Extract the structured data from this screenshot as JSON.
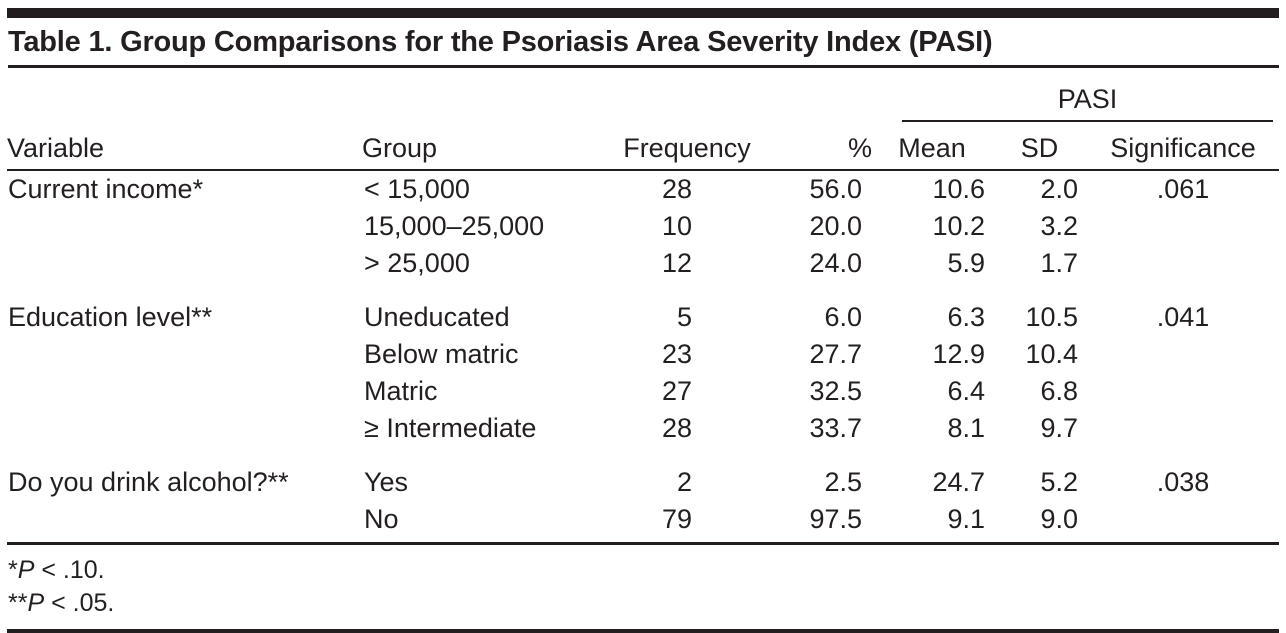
{
  "title": "Table 1. Group Comparisons for the Psoriasis Area Severity Index (PASI)",
  "table": {
    "span_header": "PASI",
    "columns": [
      "Variable",
      "Group",
      "Frequency",
      "%",
      "Mean",
      "SD",
      "Significance"
    ],
    "rows": [
      {
        "variable": "Current income*",
        "groups": [
          {
            "group": "< 15,000",
            "frequency": "28",
            "percent": "56.0",
            "mean": "10.6",
            "sd": "2.0",
            "significance": ".061"
          },
          {
            "group": "15,000–25,000",
            "frequency": "10",
            "percent": "20.0",
            "mean": "10.2",
            "sd": "3.2",
            "significance": ""
          },
          {
            "group": "> 25,000",
            "frequency": "12",
            "percent": "24.0",
            "mean": "5.9",
            "sd": "1.7",
            "significance": ""
          }
        ]
      },
      {
        "variable": "Education level**",
        "groups": [
          {
            "group": "Uneducated",
            "frequency": "5",
            "percent": "6.0",
            "mean": "6.3",
            "sd": "10.5",
            "significance": ".041"
          },
          {
            "group": "Below matric",
            "frequency": "23",
            "percent": "27.7",
            "mean": "12.9",
            "sd": "10.4",
            "significance": ""
          },
          {
            "group": "Matric",
            "frequency": "27",
            "percent": "32.5",
            "mean": "6.4",
            "sd": "6.8",
            "significance": ""
          },
          {
            "group": "≥ Intermediate",
            "frequency": "28",
            "percent": "33.7",
            "mean": "8.1",
            "sd": "9.7",
            "significance": ""
          }
        ]
      },
      {
        "variable": "Do you drink alcohol?**",
        "groups": [
          {
            "group": "Yes",
            "frequency": "2",
            "percent": "2.5",
            "mean": "24.7",
            "sd": "5.2",
            "significance": ".038"
          },
          {
            "group": "No",
            "frequency": "79",
            "percent": "97.5",
            "mean": "9.1",
            "sd": "9.0",
            "significance": ""
          }
        ]
      }
    ]
  },
  "footnotes": [
    {
      "stars": "*",
      "p": "P",
      "rest": " < .10."
    },
    {
      "stars": "**",
      "p": "P",
      "rest": " < .05."
    }
  ],
  "colors": {
    "text": "#231f20",
    "rule": "#231f20",
    "background": "#ffffff"
  }
}
